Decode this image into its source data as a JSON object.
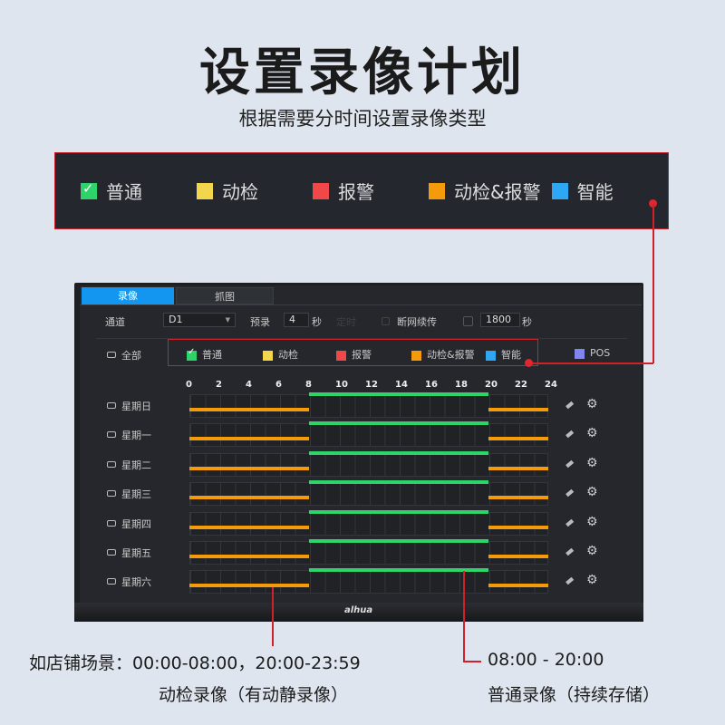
{
  "title": "设置录像计划",
  "subtitle": "根据需要分时间设置录像类型",
  "legend": [
    {
      "label": "普通",
      "color": "#2ed36a",
      "checked": true
    },
    {
      "label": "动检",
      "color": "#f2d64b"
    },
    {
      "label": "报警",
      "color": "#f04848"
    },
    {
      "label": "动检&报警",
      "color": "#f59a0a"
    },
    {
      "label": "智能",
      "color": "#2ea8f5"
    }
  ],
  "screen": {
    "tabs": [
      "录像",
      "抓图"
    ],
    "channel_label": "通道",
    "channel_value": "D1",
    "prerecord_label": "预录",
    "prerecord_value": "4",
    "sec": "秒",
    "disabled_label": "定时",
    "resume_label": "断网续传",
    "resume_value": "1800",
    "all_label": "全部",
    "types": [
      {
        "label": "普通",
        "color": "#2ed36a",
        "checked": true
      },
      {
        "label": "动检",
        "color": "#f2d64b"
      },
      {
        "label": "报警",
        "color": "#f04848"
      },
      {
        "label": "动检&报警",
        "color": "#f59a0a"
      },
      {
        "label": "智能",
        "color": "#2ea8f5"
      },
      {
        "label": "POS",
        "color": "#7f86f0"
      }
    ],
    "hours": [
      "0",
      "2",
      "4",
      "6",
      "8",
      "10",
      "12",
      "14",
      "16",
      "18",
      "20",
      "22",
      "24"
    ],
    "days": [
      "星期日",
      "星期一",
      "星期二",
      "星期三",
      "星期四",
      "星期五",
      "星期六"
    ],
    "schedule": [
      {
        "type": "普通",
        "color": "#2ed36a",
        "start": 8,
        "end": 20
      },
      {
        "type": "动检&报警",
        "color": "#f59a0a",
        "start": 0,
        "end": 8
      },
      {
        "type": "动检&报警",
        "color": "#f59a0a",
        "start": 20,
        "end": 24
      }
    ],
    "icons": [
      "eraser-icon",
      "gear-icon"
    ]
  },
  "brand": "alhua",
  "bottom": {
    "scene": "如店铺场景：00:00-08:00，20:00-23:59",
    "scene_desc": "动检录像（有动静录像）",
    "normal_time": "08:00 - 20:00",
    "normal_desc": "普通录像（持续存储）"
  }
}
